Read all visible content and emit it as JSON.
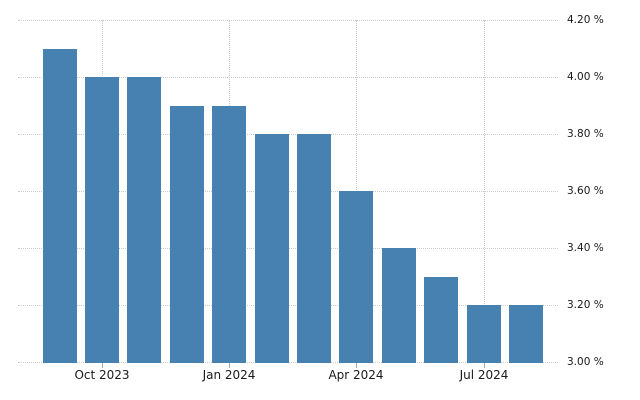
{
  "chart_data": {
    "type": "bar",
    "title": "",
    "xlabel": "",
    "ylabel": "",
    "unit": "%",
    "x": [
      "Sep 2023",
      "Oct 2023",
      "Nov 2023",
      "Dec 2023",
      "Jan 2024",
      "Feb 2024",
      "Mar 2024",
      "Apr 2024",
      "May 2024",
      "Jun 2024",
      "Jul 2024",
      "Aug 2024"
    ],
    "values": [
      4.1,
      4.0,
      4.0,
      3.9,
      3.9,
      3.8,
      3.8,
      3.6,
      3.4,
      3.3,
      3.2,
      3.2
    ],
    "ylim": [
      3.0,
      4.2
    ],
    "y_ticks": [
      4.2,
      4.0,
      3.8,
      3.6,
      3.4,
      3.2,
      3.0
    ],
    "y_tick_labels": [
      "4.20 %",
      "4.00 %",
      "3.80 %",
      "3.60 %",
      "3.40 %",
      "3.20 %",
      "3.00 %"
    ],
    "x_tick_labels": [
      "Oct 2023",
      "Jan 2024",
      "Apr 2024",
      "Jul 2024"
    ],
    "x_tick_bar_indices": [
      1,
      4,
      7,
      10
    ],
    "grid": "dotted",
    "legend_position": "none",
    "colors": {
      "bar": "#4681b2",
      "gridline": "#cbcbcb",
      "tick_mark": "#a9a9a9",
      "label_text": "#1a1a1a",
      "background": "#ffffff"
    }
  }
}
